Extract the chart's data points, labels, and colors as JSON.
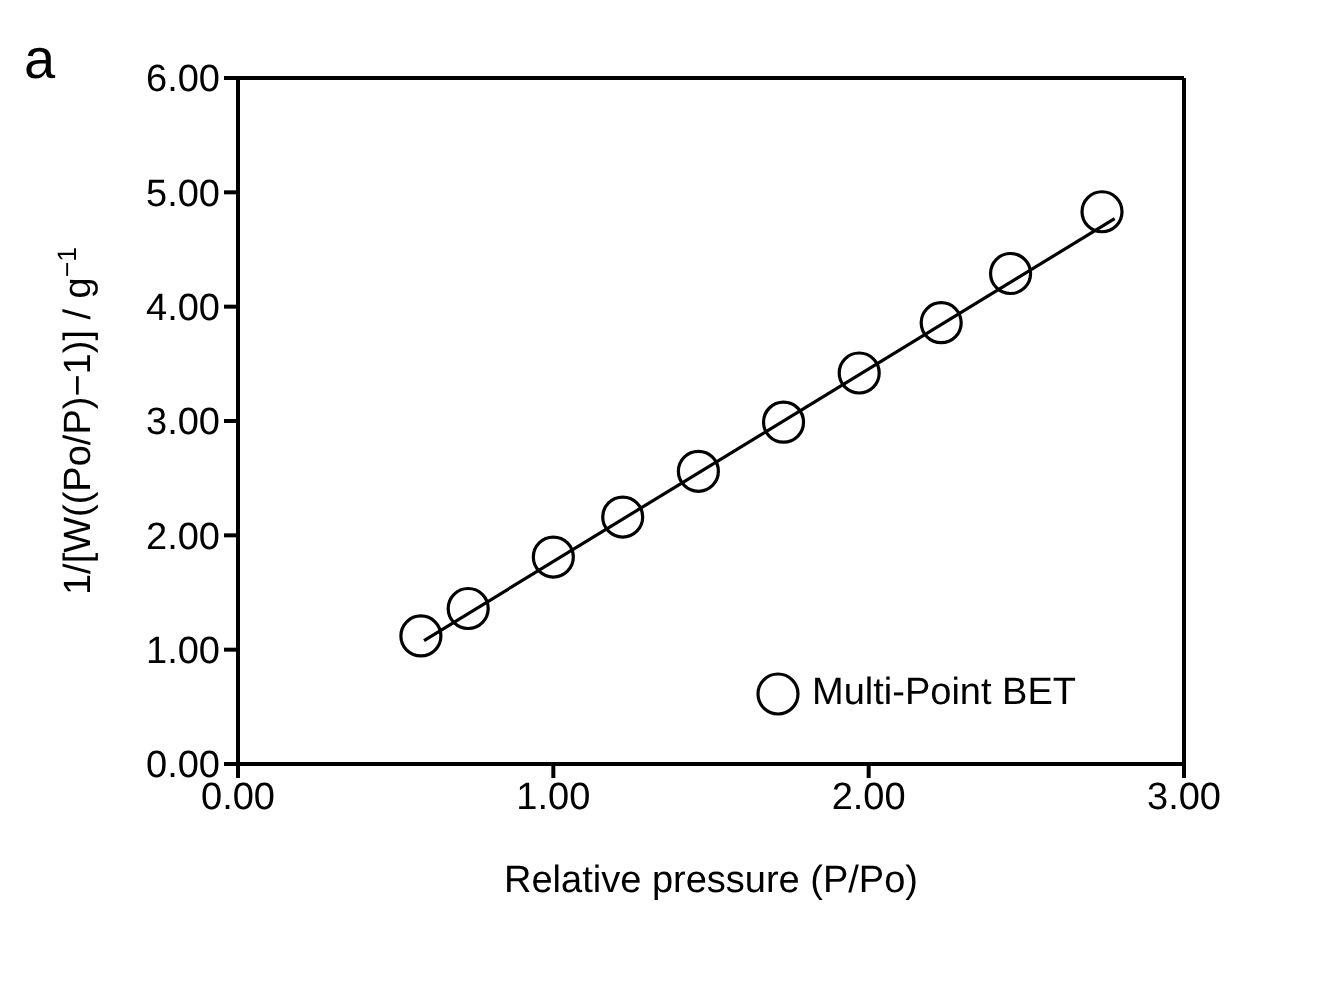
{
  "chart_data": {
    "type": "scatter",
    "xlabel": "Relative pressure (P/Po)",
    "ylabel": "1/[W((Po/P)−1)] / g$^{−1}$",
    "annotations": [
      "a"
    ],
    "x": [
      0.58,
      0.73,
      1.0,
      1.22,
      1.46,
      1.73,
      1.97,
      2.23,
      2.45,
      2.74
    ],
    "series": [
      {
        "name": "Multi-Point BET",
        "color": "#000000",
        "marker": "circle",
        "values": [
          1.12,
          1.36,
          1.81,
          2.16,
          2.56,
          2.99,
          3.42,
          3.86,
          4.29,
          4.83
        ]
      },
      {
        "type": "line",
        "color": "#000000",
        "x": [
          0.59,
          2.78
        ],
        "values": [
          1.08,
          4.77
        ]
      }
    ],
    "xlim": [
      0,
      3
    ],
    "ylim": [
      0,
      6
    ],
    "xticks": [
      {
        "value": 0,
        "label": "0.00"
      },
      {
        "value": 1,
        "label": "1.00"
      },
      {
        "value": 2,
        "label": "2.00"
      },
      {
        "value": 3,
        "label": "3.00"
      }
    ],
    "yticks": [
      {
        "value": 0,
        "label": "0.00"
      },
      {
        "value": 1,
        "label": "1.00"
      },
      {
        "value": 2,
        "label": "2.00"
      },
      {
        "value": 3,
        "label": "3.00"
      },
      {
        "value": 4,
        "label": "4.00"
      },
      {
        "value": 5,
        "label": "5.00"
      },
      {
        "value": 6,
        "label": "6.00"
      }
    ],
    "legend": "bottom right",
    "line_style": "solid"
  }
}
